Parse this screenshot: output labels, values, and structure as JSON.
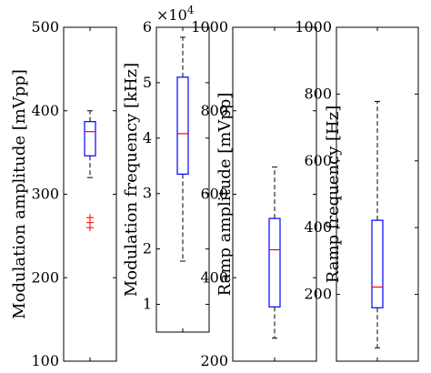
{
  "chart_data": [
    {
      "type": "box",
      "ylabel": "Modulation amplitude [mVpp]",
      "ylim": [
        100,
        500
      ],
      "yticks": [
        100,
        200,
        300,
        400,
        500
      ],
      "box": {
        "whisker_low": 320,
        "q1": 346,
        "median": 375,
        "q3": 387,
        "whisker_high": 400
      },
      "outliers": [
        260,
        266,
        272
      ]
    },
    {
      "type": "box",
      "ylabel": "Modulation frequency [kHz]",
      "ylim": [
        0.5,
        6
      ],
      "yticks": [
        1,
        2,
        3,
        4,
        5,
        6
      ],
      "exponent_label": "×10^4",
      "exponent_base": "×10",
      "exponent_power": "4",
      "box": {
        "whisker_low": 1.78,
        "q1": 3.35,
        "median": 4.08,
        "q3": 5.1,
        "whisker_high": 5.82
      },
      "outliers": []
    },
    {
      "type": "box",
      "ylabel": "Ramp amplitude [mVpp]",
      "ylim": [
        200,
        1000
      ],
      "yticks": [
        200,
        400,
        600,
        800,
        1000
      ],
      "box": {
        "whisker_low": 255,
        "q1": 330,
        "median": 467,
        "q3": 542,
        "whisker_high": 665
      },
      "outliers": []
    },
    {
      "type": "box",
      "ylabel": "Ramp frequency [Hz]",
      "ylim": [
        0,
        1000
      ],
      "yticks": [
        200,
        400,
        600,
        800,
        1000
      ],
      "box": {
        "whisker_low": 40,
        "q1": 160,
        "median": 222,
        "q3": 422,
        "whisker_high": 778
      },
      "outliers": []
    }
  ],
  "colors": {
    "box": "#0000ff",
    "median": "#ff0000",
    "outlier": "#ff0000",
    "whisker": "#000000",
    "axes": "#000000"
  }
}
